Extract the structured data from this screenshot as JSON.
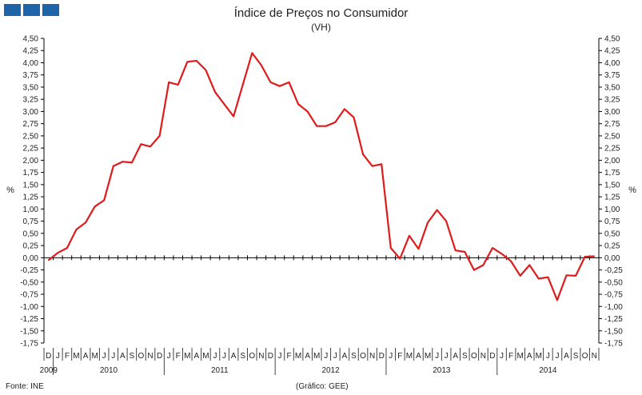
{
  "header": {
    "title": "Índice de Preços no Consumidor",
    "subtitle": "(VH)",
    "logo_color": "#1e64a8"
  },
  "footer": {
    "source": "Fonte: INE",
    "credit": "(Gráfico: GEE)"
  },
  "chart_data": {
    "type": "line",
    "title": "Índice de Preços no Consumidor",
    "subtitle": "(VH)",
    "ylabel": "%",
    "ylabel_right": "%",
    "ylim": [
      -1.75,
      4.5
    ],
    "ytick_step": 0.25,
    "ytick_labels": [
      "4,50",
      "4,25",
      "4,00",
      "3,75",
      "3,50",
      "3,25",
      "3,00",
      "2,75",
      "2,50",
      "2,25",
      "2,00",
      "1,75",
      "1,50",
      "1,25",
      "1,00",
      "0,75",
      "0,50",
      "0,25",
      "0,00",
      "-0,25",
      "-0,50",
      "-0,75",
      "-1,00",
      "-1,25",
      "-1,50",
      "-1,75"
    ],
    "month_labels": [
      "D",
      "J",
      "F",
      "M",
      "A",
      "M",
      "J",
      "J",
      "A",
      "S",
      "O",
      "N",
      "D",
      "J",
      "F",
      "M",
      "A",
      "M",
      "J",
      "J",
      "A",
      "S",
      "O",
      "N",
      "D",
      "J",
      "F",
      "M",
      "A",
      "M",
      "J",
      "J",
      "A",
      "S",
      "O",
      "N",
      "D",
      "J",
      "F",
      "M",
      "A",
      "M",
      "J",
      "J",
      "A",
      "S",
      "O",
      "N",
      "D",
      "J",
      "F",
      "M",
      "A",
      "M",
      "J",
      "J",
      "A",
      "S",
      "O",
      "N"
    ],
    "year_labels": [
      {
        "year": "2009",
        "start": 0,
        "end": 1
      },
      {
        "year": "2010",
        "start": 1,
        "end": 13
      },
      {
        "year": "2011",
        "start": 13,
        "end": 25
      },
      {
        "year": "2012",
        "start": 25,
        "end": 37
      },
      {
        "year": "2013",
        "start": 37,
        "end": 49
      },
      {
        "year": "2014",
        "start": 49,
        "end": 60
      }
    ],
    "series": [
      {
        "color": "#e01b1b",
        "values": [
          -0.05,
          0.1,
          0.2,
          0.58,
          0.72,
          1.05,
          1.18,
          1.88,
          1.97,
          1.95,
          2.33,
          2.28,
          2.5,
          3.6,
          3.55,
          4.02,
          4.04,
          3.85,
          3.4,
          3.15,
          2.9,
          3.55,
          4.2,
          3.95,
          3.6,
          3.52,
          3.6,
          3.15,
          3.0,
          2.7,
          2.7,
          2.78,
          3.05,
          2.88,
          2.12,
          1.88,
          1.92,
          0.2,
          -0.02,
          0.45,
          0.18,
          0.72,
          0.98,
          0.75,
          0.15,
          0.12,
          -0.25,
          -0.15,
          0.2,
          0.08,
          -0.07,
          -0.37,
          -0.15,
          -0.43,
          -0.4,
          -0.87,
          -0.36,
          -0.37,
          0.02,
          0.03
        ]
      }
    ],
    "grid": false
  }
}
